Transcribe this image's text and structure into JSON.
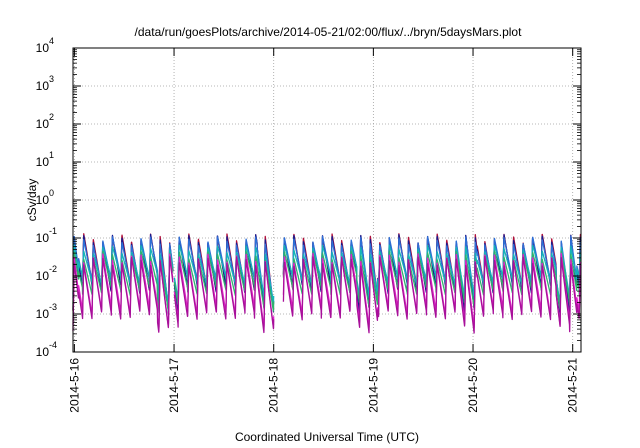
{
  "chart_data": {
    "type": "line",
    "title": "/data/run/goesPlots/archive/2014-05-21/02:00/flux/../bryn/5daysMars.plot",
    "xlabel": "Coordinated Universal Time (UTC)",
    "ylabel": "cSv/day",
    "yscale": "log",
    "ylim": [
      0.0001,
      10000
    ],
    "xlim": [
      "2014-05-15 23:40",
      "2014-05-21 02:00"
    ],
    "grid": true,
    "y_ticks": [
      {
        "base": "10",
        "exp": "-4",
        "value": 0.0001
      },
      {
        "base": "10",
        "exp": "-3",
        "value": 0.001
      },
      {
        "base": "10",
        "exp": "-2",
        "value": 0.01
      },
      {
        "base": "10",
        "exp": "-1",
        "value": 0.1
      },
      {
        "base": "10",
        "exp": "0",
        "value": 1
      },
      {
        "base": "10",
        "exp": "1",
        "value": 10
      },
      {
        "base": "10",
        "exp": "2",
        "value": 100
      },
      {
        "base": "10",
        "exp": "3",
        "value": 1000
      },
      {
        "base": "10",
        "exp": "4",
        "value": 10000
      }
    ],
    "x_ticks": [
      {
        "label": "2014-5-16",
        "value": "2014-05-16 00:00"
      },
      {
        "label": "2014-5-17",
        "value": "2014-05-17 00:00"
      },
      {
        "label": "2014-5-18",
        "value": "2014-05-18 00:00"
      },
      {
        "label": "2014-5-19",
        "value": "2014-05-19 00:00"
      },
      {
        "label": "2014-5-20",
        "value": "2014-05-20 00:00"
      },
      {
        "label": "2014-5-21",
        "value": "2014-05-21 00:00"
      }
    ],
    "pass_period_hours": 2.3,
    "pass_start": "2014-05-15 23:40",
    "gaps": [
      {
        "start": "2014-05-16 23:45",
        "end": "2014-05-17 00:05"
      },
      {
        "start": "2014-05-18 00:00",
        "end": "2014-05-18 02:20"
      }
    ],
    "series": [
      {
        "color": "#b0103a",
        "peak": 0.1,
        "trough": 0.005,
        "deep_trough": 0.0012
      },
      {
        "color": "#1a1a8c",
        "peak": 0.095,
        "trough": 0.0045,
        "deep_trough": 0.0011
      },
      {
        "color": "#2e6fd6",
        "peak": 0.085,
        "trough": 0.007,
        "deep_trough": 0.002
      },
      {
        "color": "#15b3b8",
        "peak": 0.05,
        "trough": 0.0075,
        "deep_trough": 0.0025
      },
      {
        "color": "#2eb36b",
        "peak": 0.035,
        "trough": 0.004,
        "deep_trough": 0.0015
      },
      {
        "color": "#e020c8",
        "peak": 0.03,
        "trough": 0.0012,
        "deep_trough": 0.0005
      },
      {
        "color": "#a8109a",
        "peak": 0.025,
        "trough": 0.0009,
        "deep_trough": 0.0004
      }
    ]
  }
}
